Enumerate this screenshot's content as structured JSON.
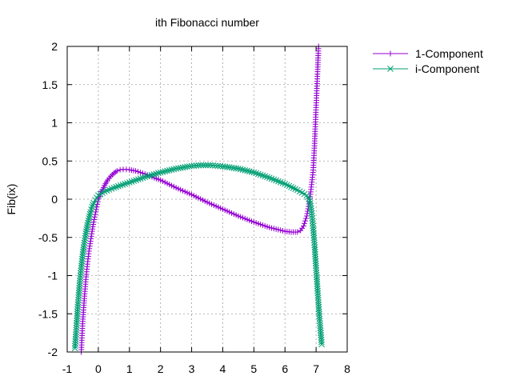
{
  "chart_data": {
    "type": "line",
    "title": "ith Fibonacci number",
    "xlabel": "",
    "ylabel": "Fib(ix)",
    "xlim": [
      -1,
      8
    ],
    "ylim": [
      -2,
      2
    ],
    "xticks": [
      -1,
      0,
      1,
      2,
      3,
      4,
      5,
      6,
      7,
      8
    ],
    "yticks": [
      -2,
      -1.5,
      -1,
      -0.5,
      0,
      0.5,
      1,
      1.5,
      2
    ],
    "grid": true,
    "legend_position": "top-right, outside plot",
    "series": [
      {
        "name": "1-Component",
        "color": "#9400d3",
        "marker": "plus",
        "points": [
          [
            -0.55,
            -2.0
          ],
          [
            -0.5,
            -1.6
          ],
          [
            -0.45,
            -1.3
          ],
          [
            -0.4,
            -1.05
          ],
          [
            -0.35,
            -0.85
          ],
          [
            -0.3,
            -0.68
          ],
          [
            -0.25,
            -0.55
          ],
          [
            -0.2,
            -0.42
          ],
          [
            -0.15,
            -0.3
          ],
          [
            -0.1,
            -0.2
          ],
          [
            -0.05,
            -0.1
          ],
          [
            0.0,
            0.0
          ],
          [
            0.1,
            0.1
          ],
          [
            0.2,
            0.18
          ],
          [
            0.3,
            0.25
          ],
          [
            0.4,
            0.3
          ],
          [
            0.5,
            0.34
          ],
          [
            0.6,
            0.37
          ],
          [
            0.7,
            0.385
          ],
          [
            0.8,
            0.39
          ],
          [
            0.9,
            0.39
          ],
          [
            1.0,
            0.385
          ],
          [
            1.2,
            0.37
          ],
          [
            1.5,
            0.33
          ],
          [
            1.8,
            0.28
          ],
          [
            2.0,
            0.25
          ],
          [
            2.5,
            0.15
          ],
          [
            3.0,
            0.06
          ],
          [
            3.5,
            -0.04
          ],
          [
            4.0,
            -0.13
          ],
          [
            4.5,
            -0.22
          ],
          [
            5.0,
            -0.3
          ],
          [
            5.5,
            -0.37
          ],
          [
            6.0,
            -0.42
          ],
          [
            6.2,
            -0.43
          ],
          [
            6.4,
            -0.43
          ],
          [
            6.5,
            -0.41
          ],
          [
            6.6,
            -0.35
          ],
          [
            6.7,
            -0.22
          ],
          [
            6.8,
            0.0
          ],
          [
            6.9,
            0.35
          ],
          [
            6.95,
            0.7
          ],
          [
            7.0,
            1.2
          ],
          [
            7.05,
            1.7
          ],
          [
            7.08,
            2.0
          ]
        ]
      },
      {
        "name": "i-Component",
        "color": "#009e73",
        "marker": "cross",
        "points": [
          [
            -0.75,
            -1.95
          ],
          [
            -0.7,
            -1.65
          ],
          [
            -0.65,
            -1.35
          ],
          [
            -0.6,
            -1.1
          ],
          [
            -0.55,
            -0.9
          ],
          [
            -0.5,
            -0.72
          ],
          [
            -0.45,
            -0.57
          ],
          [
            -0.4,
            -0.45
          ],
          [
            -0.35,
            -0.34
          ],
          [
            -0.3,
            -0.25
          ],
          [
            -0.25,
            -0.17
          ],
          [
            -0.2,
            -0.1
          ],
          [
            -0.15,
            -0.05
          ],
          [
            -0.1,
            -0.01
          ],
          [
            0.0,
            0.05
          ],
          [
            0.2,
            0.1
          ],
          [
            0.5,
            0.15
          ],
          [
            1.0,
            0.22
          ],
          [
            1.5,
            0.29
          ],
          [
            2.0,
            0.35
          ],
          [
            2.5,
            0.4
          ],
          [
            3.0,
            0.435
          ],
          [
            3.3,
            0.445
          ],
          [
            3.6,
            0.445
          ],
          [
            4.0,
            0.43
          ],
          [
            4.5,
            0.4
          ],
          [
            5.0,
            0.35
          ],
          [
            5.5,
            0.28
          ],
          [
            6.0,
            0.2
          ],
          [
            6.4,
            0.12
          ],
          [
            6.7,
            0.05
          ],
          [
            6.8,
            -0.02
          ],
          [
            6.85,
            -0.15
          ],
          [
            6.9,
            -0.35
          ],
          [
            6.95,
            -0.6
          ],
          [
            7.0,
            -0.9
          ],
          [
            7.05,
            -1.2
          ],
          [
            7.1,
            -1.5
          ],
          [
            7.15,
            -1.75
          ],
          [
            7.18,
            -1.9
          ]
        ]
      }
    ]
  }
}
